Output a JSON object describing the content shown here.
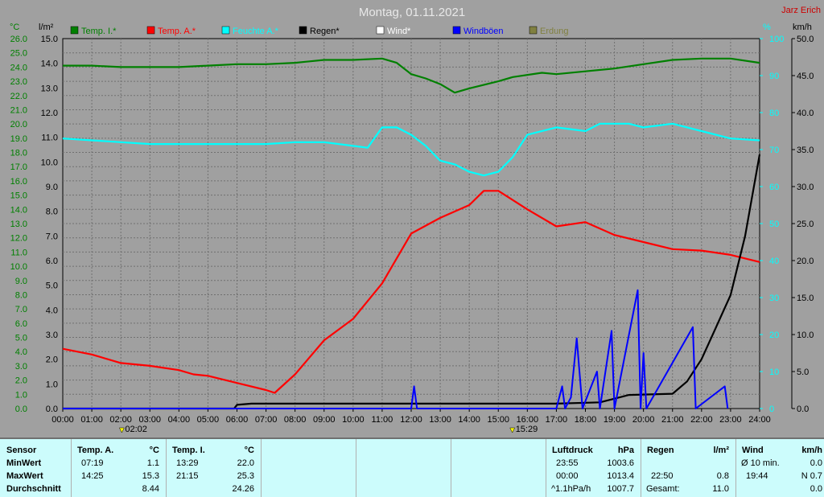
{
  "title": "Montag, 01.11.2021",
  "author": "Jarz Erich",
  "units": {
    "left_outer": "°C",
    "left_inner": "l/m²",
    "right_inner": "%",
    "right_outer": "km/h"
  },
  "legend": [
    {
      "label": "Temp. I.*",
      "color": "#008000"
    },
    {
      "label": "Temp. A.*",
      "color": "#ff0000"
    },
    {
      "label": "Feuchte A.*",
      "color": "#00ffff"
    },
    {
      "label": "Regen*",
      "color": "#000000"
    },
    {
      "label": "Wind*",
      "color": "#ffffff"
    },
    {
      "label": "Windböen",
      "color": "#0000ff"
    },
    {
      "label": "Erdung",
      "color": "#808040"
    }
  ],
  "markers": [
    "02:02",
    "15:29"
  ],
  "chart_data": {
    "type": "line",
    "x_unit": "hour",
    "xlim": [
      0,
      24
    ],
    "x_ticks": [
      "00:00",
      "01:00",
      "02:00",
      "03:00",
      "04:00",
      "05:00",
      "06:00",
      "07:00",
      "08:00",
      "09:00",
      "10:00",
      "11:00",
      "12:00",
      "13:00",
      "14:00",
      "15:00",
      "16:00",
      "17:00",
      "18:00",
      "19:00",
      "20:00",
      "21:00",
      "22:00",
      "23:00",
      "24:00"
    ],
    "axes": {
      "temp_c": {
        "ylim": [
          0,
          26
        ],
        "ticks": [
          "0.0",
          "1.0",
          "2.0",
          "3.0",
          "4.0",
          "5.0",
          "6.0",
          "7.0",
          "8.0",
          "9.0",
          "10.0",
          "11.0",
          "12.0",
          "13.0",
          "14.0",
          "15.0",
          "16.0",
          "17.0",
          "18.0",
          "19.0",
          "20.0",
          "21.0",
          "22.0",
          "23.0",
          "24.0",
          "25.0",
          "26.0"
        ]
      },
      "rain_l": {
        "ylim": [
          0,
          15
        ],
        "ticks": [
          "0.0",
          "1.0",
          "2.0",
          "3.0",
          "4.0",
          "5.0",
          "6.0",
          "7.0",
          "8.0",
          "9.0",
          "10.0",
          "11.0",
          "12.0",
          "13.0",
          "14.0",
          "15.0"
        ]
      },
      "humidity_pct": {
        "ylim": [
          0,
          100
        ],
        "ticks": [
          "0",
          "10",
          "20",
          "30",
          "40",
          "50",
          "60",
          "70",
          "80",
          "90",
          "100"
        ]
      },
      "wind_kmh": {
        "ylim": [
          0,
          50
        ],
        "ticks": [
          "0.0",
          "5.0",
          "10.0",
          "15.0",
          "20.0",
          "25.0",
          "30.0",
          "35.0",
          "40.0",
          "45.0",
          "50.0"
        ]
      }
    },
    "series": [
      {
        "name": "Temp. I.*",
        "axis": "temp_c",
        "color": "#008000",
        "points": [
          [
            0,
            24.1
          ],
          [
            1,
            24.1
          ],
          [
            2,
            24.0
          ],
          [
            4,
            24.0
          ],
          [
            5,
            24.1
          ],
          [
            6,
            24.2
          ],
          [
            7,
            24.2
          ],
          [
            8,
            24.3
          ],
          [
            9,
            24.5
          ],
          [
            10,
            24.5
          ],
          [
            11,
            24.6
          ],
          [
            11.5,
            24.3
          ],
          [
            12,
            23.5
          ],
          [
            12.5,
            23.2
          ],
          [
            13,
            22.8
          ],
          [
            13.5,
            22.2
          ],
          [
            14,
            22.5
          ],
          [
            15,
            23.0
          ],
          [
            15.5,
            23.3
          ],
          [
            16.5,
            23.6
          ],
          [
            17,
            23.5
          ],
          [
            18,
            23.7
          ],
          [
            19,
            23.9
          ],
          [
            20,
            24.2
          ],
          [
            21,
            24.5
          ],
          [
            22,
            24.6
          ],
          [
            23,
            24.6
          ],
          [
            24,
            24.3
          ]
        ]
      },
      {
        "name": "Feuchte A.*",
        "axis": "humidity_pct",
        "color": "#00ffff",
        "points": [
          [
            0,
            73
          ],
          [
            1,
            72.5
          ],
          [
            2,
            72
          ],
          [
            3,
            71.5
          ],
          [
            4,
            71.5
          ],
          [
            5,
            71.5
          ],
          [
            6,
            71.5
          ],
          [
            7,
            71.5
          ],
          [
            8,
            72
          ],
          [
            9,
            72
          ],
          [
            10,
            71
          ],
          [
            10.5,
            70.5
          ],
          [
            11,
            76
          ],
          [
            11.5,
            76
          ],
          [
            12,
            74
          ],
          [
            12.5,
            71
          ],
          [
            13,
            67
          ],
          [
            13.5,
            66
          ],
          [
            14,
            64
          ],
          [
            14.5,
            63
          ],
          [
            15,
            64
          ],
          [
            15.5,
            68
          ],
          [
            16,
            74
          ],
          [
            17,
            76
          ],
          [
            18,
            75
          ],
          [
            18.5,
            77
          ],
          [
            19.5,
            77
          ],
          [
            20,
            76
          ],
          [
            21,
            77
          ],
          [
            22,
            75
          ],
          [
            23,
            73
          ],
          [
            24,
            72.5
          ]
        ]
      },
      {
        "name": "Temp. A.*",
        "axis": "temp_c",
        "color": "#ff0000",
        "points": [
          [
            0,
            4.2
          ],
          [
            1,
            3.8
          ],
          [
            2,
            3.2
          ],
          [
            3,
            3.0
          ],
          [
            4,
            2.7
          ],
          [
            4.5,
            2.4
          ],
          [
            5,
            2.3
          ],
          [
            6,
            1.8
          ],
          [
            7,
            1.3
          ],
          [
            7.3,
            1.1
          ],
          [
            8,
            2.4
          ],
          [
            9,
            4.8
          ],
          [
            10,
            6.3
          ],
          [
            11,
            8.8
          ],
          [
            12,
            12.3
          ],
          [
            13,
            13.4
          ],
          [
            14,
            14.3
          ],
          [
            14.5,
            15.3
          ],
          [
            15,
            15.3
          ],
          [
            16,
            14.0
          ],
          [
            17,
            12.8
          ],
          [
            18,
            13.1
          ],
          [
            19,
            12.2
          ],
          [
            20,
            11.7
          ],
          [
            21,
            11.2
          ],
          [
            22,
            11.1
          ],
          [
            23,
            10.8
          ],
          [
            24,
            10.3
          ]
        ]
      },
      {
        "name": "Regen*",
        "axis": "rain_l",
        "color": "#000000",
        "points": [
          [
            0,
            0
          ],
          [
            5.9,
            0
          ],
          [
            6,
            0.15
          ],
          [
            6.5,
            0.2
          ],
          [
            17,
            0.2
          ],
          [
            18.5,
            0.25
          ],
          [
            19.5,
            0.55
          ],
          [
            21,
            0.6
          ],
          [
            21.5,
            1.1
          ],
          [
            22,
            2.0
          ],
          [
            22.5,
            3.3
          ],
          [
            23,
            4.6
          ],
          [
            23.5,
            7.0
          ],
          [
            24,
            10.3
          ]
        ]
      },
      {
        "name": "Windböen",
        "axis": "wind_kmh",
        "color": "#0000ff",
        "points": [
          [
            0,
            0
          ],
          [
            12,
            0
          ],
          [
            12.1,
            3.0
          ],
          [
            12.2,
            0
          ],
          [
            17,
            0
          ],
          [
            17.2,
            3.0
          ],
          [
            17.3,
            0
          ],
          [
            17.5,
            1.5
          ],
          [
            17.7,
            9.5
          ],
          [
            17.9,
            0
          ],
          [
            18.4,
            5.0
          ],
          [
            18.5,
            0
          ],
          [
            18.9,
            10.5
          ],
          [
            19.0,
            0
          ],
          [
            19.8,
            16.0
          ],
          [
            19.9,
            0
          ],
          [
            20.0,
            7.5
          ],
          [
            20.1,
            0
          ],
          [
            21.7,
            11.0
          ],
          [
            21.8,
            0
          ],
          [
            22.8,
            3.0
          ],
          [
            22.9,
            0
          ]
        ]
      }
    ]
  },
  "stats": {
    "sensor": {
      "header": "Sensor",
      "rows": [
        "MinWert",
        "MaxWert",
        "Durchschnitt"
      ]
    },
    "temp_a": {
      "header": "Temp. A.",
      "unit": "°C",
      "rows": [
        [
          "07:19",
          "1.1"
        ],
        [
          "14:25",
          "15.3"
        ],
        [
          "",
          "8.44"
        ]
      ]
    },
    "temp_i": {
      "header": "Temp. I.",
      "unit": "°C",
      "rows": [
        [
          "13:29",
          "22.0"
        ],
        [
          "21:15",
          "25.3"
        ],
        [
          "",
          "24.26"
        ]
      ]
    },
    "luftdruck": {
      "header": "Luftdruck",
      "unit": "hPa",
      "rows": [
        [
          "23:55",
          "1003.6"
        ],
        [
          "00:00",
          "1013.4"
        ],
        [
          "^1.1hPa/h",
          "1007.7"
        ]
      ]
    },
    "regen": {
      "header": "Regen",
      "unit": "l/m²",
      "rows": [
        [
          "",
          ""
        ],
        [
          "22:50",
          "0.8"
        ],
        [
          "Gesamt:",
          "11.0"
        ]
      ]
    },
    "wind": {
      "header": "Wind",
      "unit": "km/h",
      "rows": [
        [
          "Ø 10 min.",
          "0.0"
        ],
        [
          "19:44",
          "N 0.7"
        ],
        [
          "",
          "0.0"
        ]
      ]
    }
  }
}
